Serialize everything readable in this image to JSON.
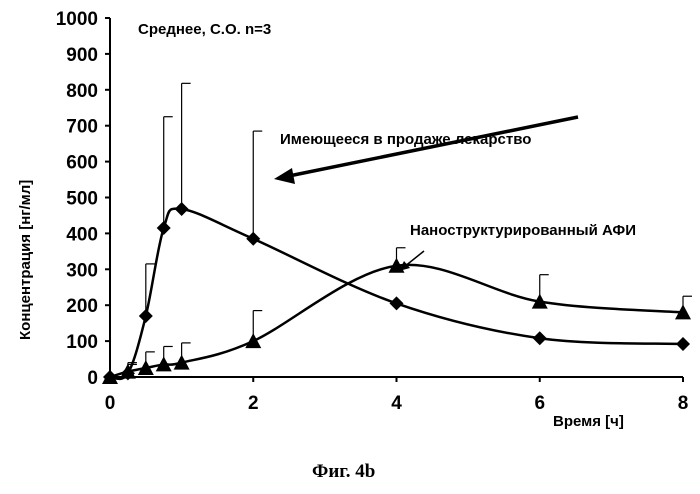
{
  "chart_data": {
    "type": "line",
    "note": "Среднее, С.О. n=3",
    "xlabel": "Время [ч]",
    "ylabel": "Концентрация [нг/мл]",
    "xlim": [
      0,
      8
    ],
    "ylim": [
      0,
      1000
    ],
    "x_ticks": [
      0,
      2,
      4,
      6,
      8
    ],
    "y_ticks": [
      0,
      100,
      200,
      300,
      400,
      500,
      600,
      700,
      800,
      900,
      1000
    ],
    "grid": false,
    "legend": "none",
    "caption": "Фиг. 4b",
    "series": [
      {
        "name": "Имеющееся в продаже лекарство",
        "marker": "diamond",
        "x": [
          0,
          0.25,
          0.5,
          0.75,
          1,
          2,
          4,
          6,
          8
        ],
        "y": [
          0,
          10,
          170,
          415,
          468,
          385,
          205,
          108,
          92
        ],
        "error": [
          0,
          25,
          145,
          310,
          350,
          300,
          0,
          0,
          0
        ]
      },
      {
        "name": "Наноструктурированный АФИ",
        "marker": "triangle",
        "x": [
          0,
          0.25,
          0.5,
          0.75,
          1,
          2,
          4,
          6,
          8
        ],
        "y": [
          0,
          15,
          25,
          35,
          40,
          100,
          310,
          210,
          180
        ],
        "error": [
          0,
          25,
          45,
          50,
          55,
          85,
          50,
          75,
          45
        ]
      }
    ]
  }
}
